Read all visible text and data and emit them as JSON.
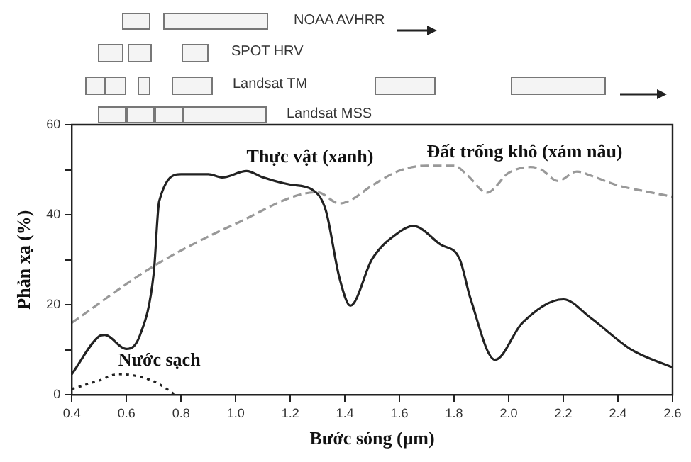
{
  "chart_data": {
    "type": "line",
    "xlabel": "Bước sóng (μm)",
    "ylabel": "Phản xạ (%)",
    "xlim": [
      0.4,
      2.6
    ],
    "xticks": [
      0.4,
      0.6,
      0.8,
      {
        "value": 1,
        "label": "1.0"
      },
      1.2,
      1.4,
      1.6,
      1.8,
      {
        "value": 2,
        "label": "2.0"
      },
      2.2,
      2.4,
      2.6
    ],
    "ylim": [
      0,
      60
    ],
    "yticks": [
      0,
      {
        "value": 10,
        "label": null
      },
      20,
      {
        "value": 30,
        "label": null
      },
      40,
      {
        "value": 50,
        "label": null
      },
      60
    ],
    "grid": false,
    "legend": false,
    "marker": "none",
    "series": [
      {
        "name": "Thực vật (xanh)",
        "color": "#222222",
        "line_style": "solid",
        "x": [
          0.4,
          0.5,
          0.52,
          0.6,
          0.65,
          0.7,
          0.72,
          0.8,
          0.9,
          0.95,
          1.04,
          1.1,
          1.2,
          1.28,
          1.33,
          1.38,
          1.42,
          1.5,
          1.6,
          1.65,
          1.75,
          1.82,
          1.86,
          1.95,
          2.05,
          2.2,
          2.3,
          2.45,
          2.6
        ],
        "values": [
          4.6,
          13,
          13.3,
          10.2,
          13.3,
          27,
          43,
          49,
          49,
          48.3,
          49.7,
          48.3,
          46.7,
          45.6,
          41,
          26,
          19.8,
          30.2,
          36.2,
          37.5,
          33.4,
          30.2,
          21.4,
          7.8,
          16,
          21.2,
          17.1,
          10,
          6.1
        ]
      },
      {
        "name": "Đất trống khô (xám nâu)",
        "color": "#999999",
        "line_style": "dashed",
        "x": [
          0.4,
          0.7,
          1.0,
          1.3,
          1.38,
          1.42,
          1.5,
          1.6,
          1.7,
          1.8,
          1.85,
          1.92,
          2.0,
          2.08,
          2.12,
          2.18,
          2.25,
          2.3,
          2.4,
          2.5,
          2.6
        ],
        "values": [
          16,
          28.6,
          38,
          45,
          42.5,
          43.2,
          46.5,
          49.8,
          50.9,
          50.9,
          48.7,
          44.9,
          49.3,
          50.6,
          50,
          47.5,
          49.6,
          48.7,
          46.5,
          45.2,
          44
        ]
      },
      {
        "name": "Nước sạch",
        "color": "#222222",
        "line_style": "dotted",
        "x": [
          0.4,
          0.5,
          0.57,
          0.7,
          0.78
        ],
        "values": [
          1.3,
          3.2,
          4.6,
          3,
          0
        ]
      }
    ],
    "annotations": [
      "NOAA AVHRR",
      "SPOT HRV",
      "Landsat TM",
      "Landsat MSS"
    ]
  }
}
